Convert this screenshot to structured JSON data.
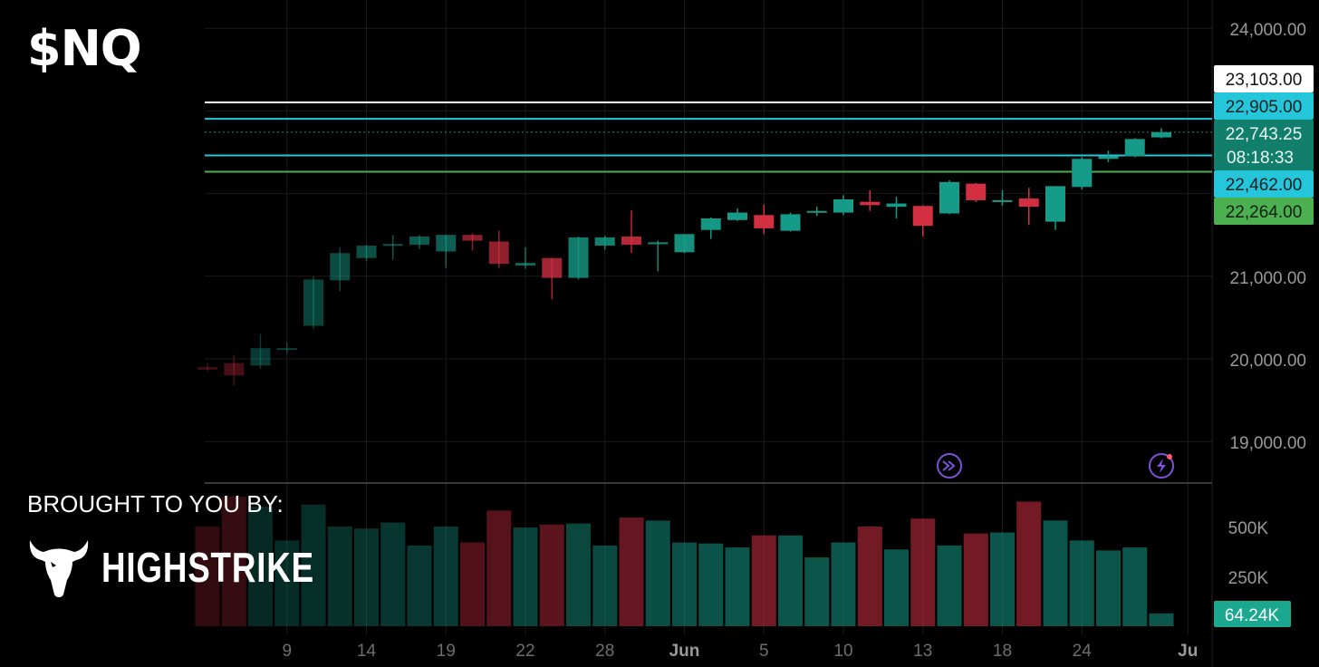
{
  "ticker": "$NQ",
  "brought_by": "BROUGHT TO YOU BY:",
  "brand": "HIGHSTRIKE",
  "chart_data": {
    "type": "candlestick",
    "price_axis": {
      "ticks": [
        24000,
        21000,
        20000,
        19000
      ],
      "tick_labels": [
        "24,000.00",
        "21,000.00",
        "20,000.00",
        "19,000.00"
      ]
    },
    "volume_axis": {
      "ticks": [
        500000,
        250000
      ],
      "tick_labels": [
        "500K",
        "250K"
      ]
    },
    "x_axis": {
      "tick_labels": [
        "9",
        "14",
        "19",
        "22",
        "28",
        "Jun",
        "5",
        "10",
        "13",
        "18",
        "24",
        "Ju"
      ],
      "tick_bar_index": [
        3,
        6,
        9,
        12,
        15,
        18,
        21,
        24,
        27,
        30,
        33,
        37
      ]
    },
    "candles": [
      {
        "o": 19900,
        "h": 19950,
        "l": 19850,
        "c": 19870
      },
      {
        "o": 19950,
        "h": 20050,
        "l": 19680,
        "c": 19800
      },
      {
        "o": 19920,
        "h": 20300,
        "l": 19880,
        "c": 20130
      },
      {
        "o": 20130,
        "h": 20200,
        "l": 20060,
        "c": 20130
      },
      {
        "o": 20400,
        "h": 21000,
        "l": 20360,
        "c": 20960
      },
      {
        "o": 20950,
        "h": 21350,
        "l": 20820,
        "c": 21280
      },
      {
        "o": 21220,
        "h": 21380,
        "l": 21180,
        "c": 21370
      },
      {
        "o": 21380,
        "h": 21500,
        "l": 21200,
        "c": 21390
      },
      {
        "o": 21380,
        "h": 21500,
        "l": 21330,
        "c": 21480
      },
      {
        "o": 21300,
        "h": 21500,
        "l": 21100,
        "c": 21500
      },
      {
        "o": 21500,
        "h": 21520,
        "l": 21310,
        "c": 21430
      },
      {
        "o": 21420,
        "h": 21550,
        "l": 21100,
        "c": 21150
      },
      {
        "o": 21130,
        "h": 21350,
        "l": 21090,
        "c": 21160
      },
      {
        "o": 21220,
        "h": 21220,
        "l": 20720,
        "c": 20980
      },
      {
        "o": 20980,
        "h": 21480,
        "l": 20960,
        "c": 21470
      },
      {
        "o": 21370,
        "h": 21490,
        "l": 21320,
        "c": 21470
      },
      {
        "o": 21480,
        "h": 21800,
        "l": 21280,
        "c": 21380
      },
      {
        "o": 21400,
        "h": 21430,
        "l": 21060,
        "c": 21410
      },
      {
        "o": 21290,
        "h": 21500,
        "l": 21280,
        "c": 21510
      },
      {
        "o": 21560,
        "h": 21710,
        "l": 21450,
        "c": 21700
      },
      {
        "o": 21680,
        "h": 21820,
        "l": 21670,
        "c": 21770
      },
      {
        "o": 21740,
        "h": 21870,
        "l": 21510,
        "c": 21580
      },
      {
        "o": 21550,
        "h": 21770,
        "l": 21540,
        "c": 21750
      },
      {
        "o": 21790,
        "h": 21840,
        "l": 21730,
        "c": 21790
      },
      {
        "o": 21770,
        "h": 21980,
        "l": 21740,
        "c": 21930
      },
      {
        "o": 21900,
        "h": 22040,
        "l": 21790,
        "c": 21860
      },
      {
        "o": 21840,
        "h": 21960,
        "l": 21700,
        "c": 21880
      },
      {
        "o": 21850,
        "h": 21860,
        "l": 21480,
        "c": 21610
      },
      {
        "o": 21760,
        "h": 22160,
        "l": 21750,
        "c": 22140
      },
      {
        "o": 22120,
        "h": 22130,
        "l": 21900,
        "c": 21920
      },
      {
        "o": 21920,
        "h": 22040,
        "l": 21850,
        "c": 21920
      },
      {
        "o": 21940,
        "h": 22070,
        "l": 21620,
        "c": 21840
      },
      {
        "o": 21660,
        "h": 22080,
        "l": 21560,
        "c": 22090
      },
      {
        "o": 22080,
        "h": 22440,
        "l": 22050,
        "c": 22420
      },
      {
        "o": 22420,
        "h": 22520,
        "l": 22380,
        "c": 22450
      },
      {
        "o": 22450,
        "h": 22670,
        "l": 22440,
        "c": 22660
      },
      {
        "o": 22680,
        "h": 22790,
        "l": 22670,
        "c": 22743.25
      }
    ],
    "volume": [
      500000,
      650000,
      600000,
      430000,
      610000,
      500000,
      490000,
      520000,
      405000,
      500000,
      420000,
      580000,
      495000,
      510000,
      515000,
      405000,
      545000,
      530000,
      420000,
      415000,
      395000,
      455000,
      455000,
      345000,
      420000,
      500000,
      385000,
      540000,
      405000,
      465000,
      470000,
      625000,
      530000,
      430000,
      380000,
      395000,
      64240
    ],
    "volume_label": "64.24K",
    "horizontal_lines": [
      {
        "price": 23103,
        "label": "23,103.00",
        "color": "#ffffff"
      },
      {
        "price": 22905,
        "label": "22,905.00",
        "color": "#26c6da"
      },
      {
        "price": 22743.25,
        "label": "22,743.25",
        "sublabel": "08:18:33",
        "color": "#1a8f7a",
        "dotted": true
      },
      {
        "price": 22462,
        "label": "22,462.00",
        "color": "#26c6da"
      },
      {
        "price": 22264,
        "label": "22,264.00",
        "color": "#4caf50"
      }
    ],
    "last_price": "22,743.25",
    "countdown": "08:18:33",
    "colors": {
      "up": "#159b87",
      "down": "#d32f43",
      "background": "#000000",
      "grid": "#1a1a1a",
      "event_icon": "#7b52d9"
    },
    "events": [
      {
        "bar_index": 28,
        "icon": "fast-forward-icon"
      },
      {
        "bar_index": 36,
        "icon": "lightning-icon"
      }
    ]
  }
}
